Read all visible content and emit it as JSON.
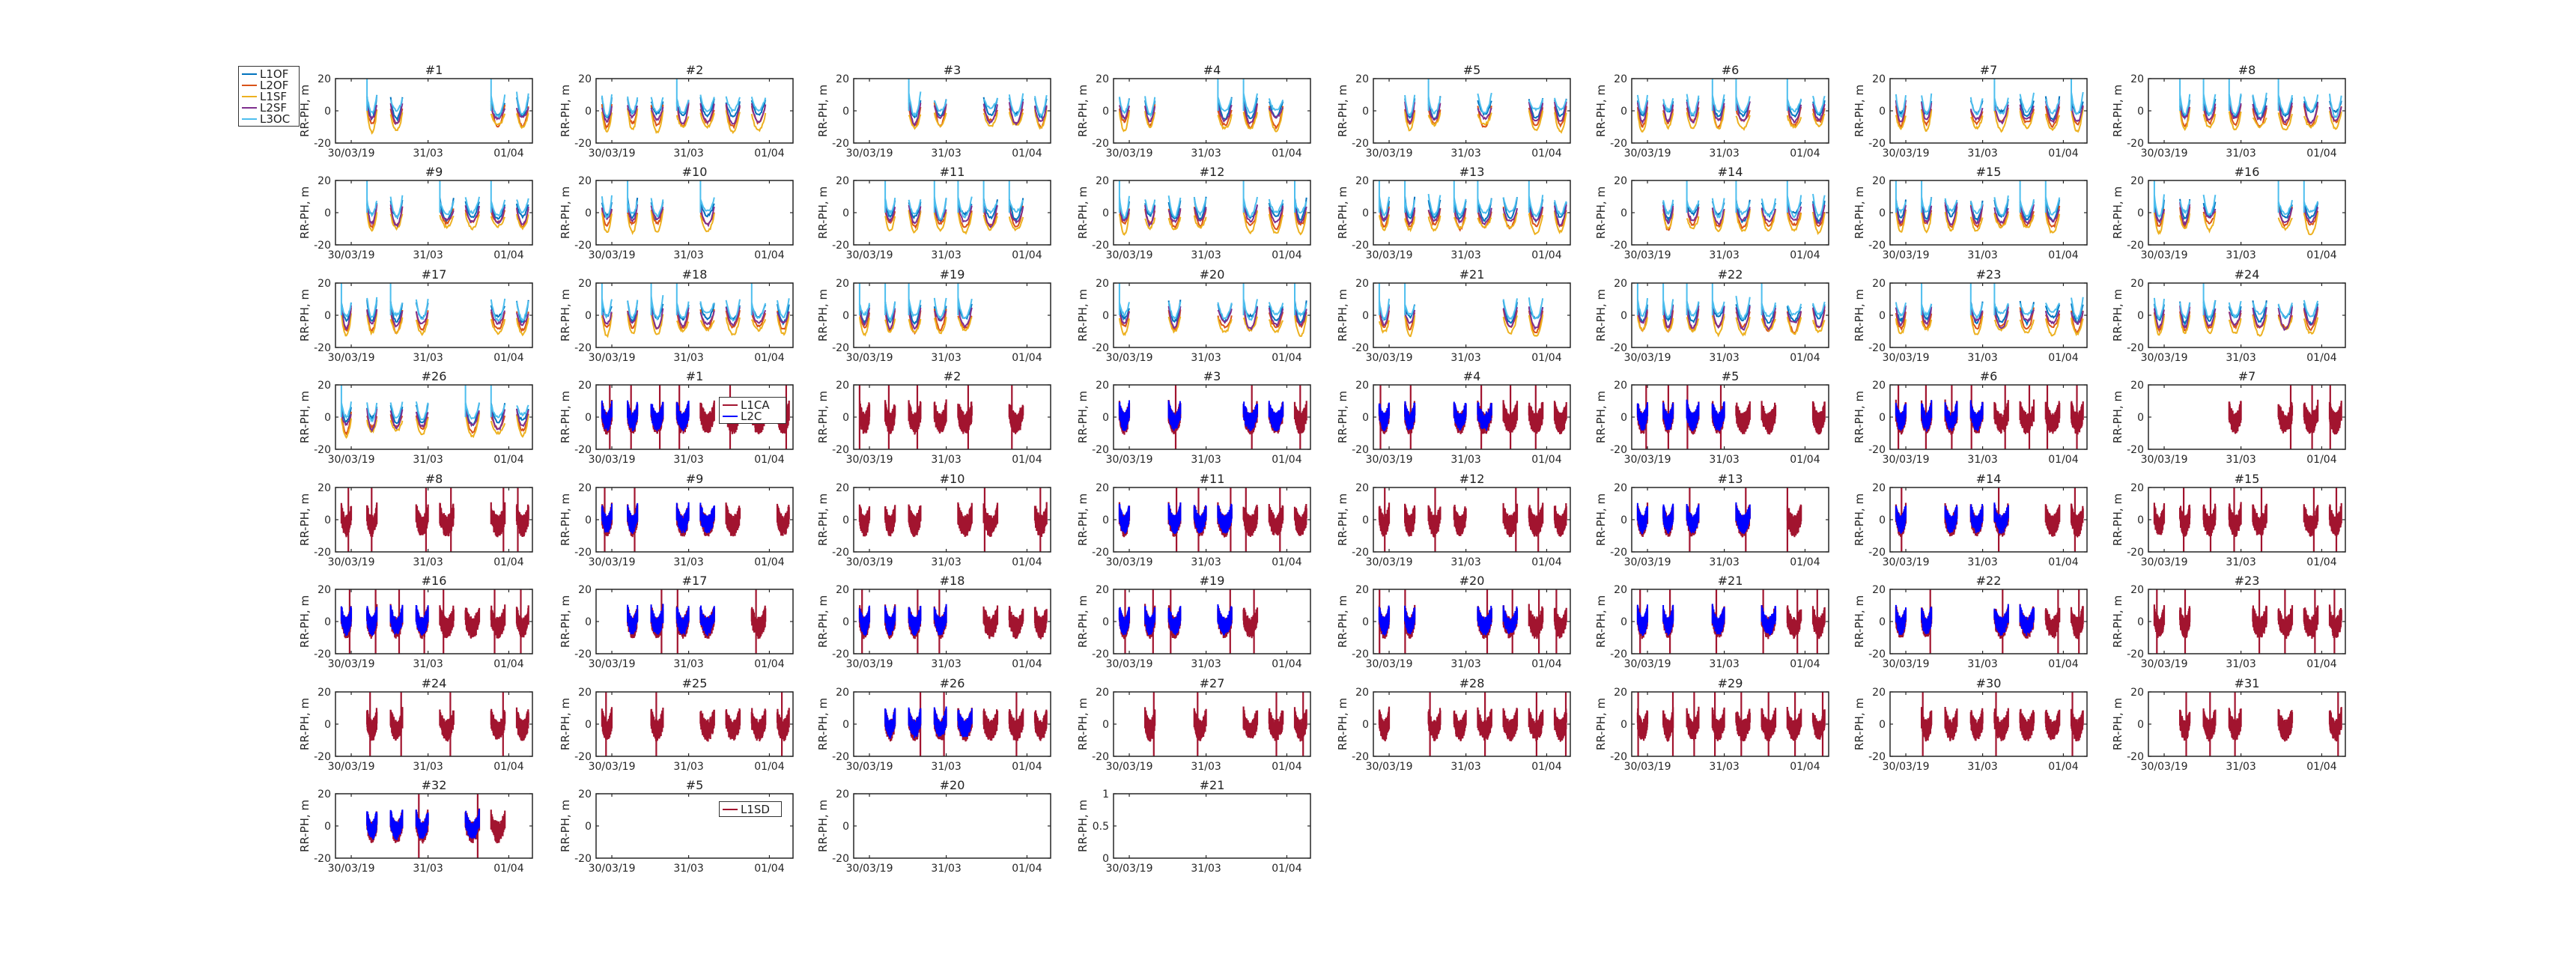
{
  "ylabel": "RR-PH, m",
  "xticks": [
    "30/03/19",
    "31/03",
    "01/04"
  ],
  "colors": {
    "L1OF": "#0072BD",
    "L2OF": "#D95319",
    "L1SF": "#EDB120",
    "L2SF": "#7E2F8E",
    "L3OC": "#4DBEEE",
    "L1CA": "#A2142F",
    "L2C": "#0000FF",
    "L1SD": "#A2142F"
  },
  "legends": {
    "glonass": [
      "L1OF",
      "L2OF",
      "L1SF",
      "L2SF",
      "L3OC"
    ],
    "gps": [
      "L1CA",
      "L2C"
    ],
    "sbas": [
      "L1SD"
    ]
  },
  "chart_data": [
    {
      "type": "line",
      "title": "#1",
      "group": "glonass",
      "ylim": [
        -20,
        20
      ],
      "yticks": [
        -20,
        0,
        20
      ],
      "series": [
        "L1OF",
        "L2OF",
        "L1SF",
        "L2SF",
        "L3OC"
      ]
    },
    {
      "type": "line",
      "title": "#2",
      "group": "glonass",
      "ylim": [
        -20,
        20
      ],
      "yticks": [
        -20,
        0,
        20
      ],
      "series": [
        "L1OF",
        "L2OF",
        "L1SF",
        "L2SF",
        "L3OC"
      ]
    },
    {
      "type": "line",
      "title": "#3",
      "group": "glonass",
      "ylim": [
        -20,
        20
      ],
      "yticks": [
        -20,
        0,
        20
      ],
      "series": [
        "L1OF",
        "L2OF",
        "L1SF",
        "L2SF",
        "L3OC"
      ]
    },
    {
      "type": "line",
      "title": "#4",
      "group": "glonass",
      "ylim": [
        -20,
        20
      ],
      "yticks": [
        -20,
        0,
        20
      ],
      "series": [
        "L1OF",
        "L2OF",
        "L1SF",
        "L2SF",
        "L3OC"
      ]
    },
    {
      "type": "line",
      "title": "#5",
      "group": "glonass",
      "ylim": [
        -20,
        20
      ],
      "yticks": [
        -20,
        0,
        20
      ],
      "series": [
        "L1OF",
        "L2OF",
        "L1SF",
        "L2SF",
        "L3OC"
      ]
    },
    {
      "type": "line",
      "title": "#6",
      "group": "glonass",
      "ylim": [
        -20,
        20
      ],
      "yticks": [
        -20,
        0,
        20
      ],
      "series": [
        "L1OF",
        "L2OF",
        "L1SF",
        "L2SF",
        "L3OC"
      ]
    },
    {
      "type": "line",
      "title": "#7",
      "group": "glonass",
      "ylim": [
        -20,
        20
      ],
      "yticks": [
        -20,
        0,
        20
      ],
      "series": [
        "L1OF",
        "L2OF",
        "L1SF",
        "L2SF",
        "L3OC"
      ]
    },
    {
      "type": "line",
      "title": "#8",
      "group": "glonass",
      "ylim": [
        -20,
        20
      ],
      "yticks": [
        -20,
        0,
        20
      ],
      "series": [
        "L1OF",
        "L2OF",
        "L1SF",
        "L2SF",
        "L3OC"
      ]
    },
    {
      "type": "line",
      "title": "#9",
      "group": "glonass",
      "ylim": [
        -20,
        20
      ],
      "yticks": [
        -20,
        0,
        20
      ],
      "series": [
        "L1OF",
        "L2OF",
        "L1SF",
        "L2SF",
        "L3OC"
      ]
    },
    {
      "type": "line",
      "title": "#10",
      "group": "glonass",
      "ylim": [
        -20,
        20
      ],
      "yticks": [
        -20,
        0,
        20
      ],
      "series": [
        "L1OF",
        "L2OF",
        "L1SF",
        "L2SF",
        "L3OC"
      ]
    },
    {
      "type": "line",
      "title": "#11",
      "group": "glonass",
      "ylim": [
        -20,
        20
      ],
      "yticks": [
        -20,
        0,
        20
      ],
      "series": [
        "L1OF",
        "L2OF",
        "L1SF",
        "L2SF",
        "L3OC"
      ]
    },
    {
      "type": "line",
      "title": "#12",
      "group": "glonass",
      "ylim": [
        -20,
        20
      ],
      "yticks": [
        -20,
        0,
        20
      ],
      "series": [
        "L1OF",
        "L2OF",
        "L1SF",
        "L2SF",
        "L3OC"
      ]
    },
    {
      "type": "line",
      "title": "#13",
      "group": "glonass",
      "ylim": [
        -20,
        20
      ],
      "yticks": [
        -20,
        0,
        20
      ],
      "series": [
        "L1OF",
        "L2OF",
        "L1SF",
        "L2SF",
        "L3OC"
      ]
    },
    {
      "type": "line",
      "title": "#14",
      "group": "glonass",
      "ylim": [
        -20,
        20
      ],
      "yticks": [
        -20,
        0,
        20
      ],
      "series": [
        "L1OF",
        "L2OF",
        "L1SF",
        "L2SF",
        "L3OC"
      ]
    },
    {
      "type": "line",
      "title": "#15",
      "group": "glonass",
      "ylim": [
        -20,
        20
      ],
      "yticks": [
        -20,
        0,
        20
      ],
      "series": [
        "L1OF",
        "L2OF",
        "L1SF",
        "L2SF",
        "L3OC"
      ]
    },
    {
      "type": "line",
      "title": "#16",
      "group": "glonass",
      "ylim": [
        -20,
        20
      ],
      "yticks": [
        -20,
        0,
        20
      ],
      "series": [
        "L1OF",
        "L2OF",
        "L1SF",
        "L2SF",
        "L3OC"
      ]
    },
    {
      "type": "line",
      "title": "#17",
      "group": "glonass",
      "ylim": [
        -20,
        20
      ],
      "yticks": [
        -20,
        0,
        20
      ],
      "series": [
        "L1OF",
        "L2OF",
        "L1SF",
        "L2SF",
        "L3OC"
      ]
    },
    {
      "type": "line",
      "title": "#18",
      "group": "glonass",
      "ylim": [
        -20,
        20
      ],
      "yticks": [
        -20,
        0,
        20
      ],
      "series": [
        "L1OF",
        "L2OF",
        "L1SF",
        "L2SF",
        "L3OC"
      ]
    },
    {
      "type": "line",
      "title": "#19",
      "group": "glonass",
      "ylim": [
        -20,
        20
      ],
      "yticks": [
        -20,
        0,
        20
      ],
      "series": [
        "L1OF",
        "L2OF",
        "L1SF",
        "L2SF",
        "L3OC"
      ]
    },
    {
      "type": "line",
      "title": "#20",
      "group": "glonass",
      "ylim": [
        -20,
        20
      ],
      "yticks": [
        -20,
        0,
        20
      ],
      "series": [
        "L1OF",
        "L2OF",
        "L1SF",
        "L2SF",
        "L3OC"
      ]
    },
    {
      "type": "line",
      "title": "#21",
      "group": "glonass",
      "ylim": [
        -20,
        20
      ],
      "yticks": [
        -20,
        0,
        20
      ],
      "series": [
        "L1OF",
        "L2OF",
        "L1SF",
        "L2SF",
        "L3OC"
      ]
    },
    {
      "type": "line",
      "title": "#22",
      "group": "glonass",
      "ylim": [
        -20,
        20
      ],
      "yticks": [
        -20,
        0,
        20
      ],
      "series": [
        "L1OF",
        "L2OF",
        "L1SF",
        "L2SF",
        "L3OC"
      ]
    },
    {
      "type": "line",
      "title": "#23",
      "group": "glonass",
      "ylim": [
        -20,
        20
      ],
      "yticks": [
        -20,
        0,
        20
      ],
      "series": [
        "L1OF",
        "L2OF",
        "L1SF",
        "L2SF",
        "L3OC"
      ]
    },
    {
      "type": "line",
      "title": "#24",
      "group": "glonass",
      "ylim": [
        -20,
        20
      ],
      "yticks": [
        -20,
        0,
        20
      ],
      "series": [
        "L1OF",
        "L2OF",
        "L1SF",
        "L2SF",
        "L3OC"
      ]
    },
    {
      "type": "line",
      "title": "#26",
      "group": "glonass",
      "ylim": [
        -20,
        20
      ],
      "yticks": [
        -20,
        0,
        20
      ],
      "series": [
        "L1OF",
        "L2OF",
        "L1SF",
        "L2SF",
        "L3OC"
      ]
    },
    {
      "type": "line",
      "title": "#1",
      "group": "gps",
      "ylim": [
        -20,
        20
      ],
      "yticks": [
        -20,
        0,
        20
      ],
      "series": [
        "L1CA",
        "L2C"
      ]
    },
    {
      "type": "line",
      "title": "#2",
      "group": "gps",
      "ylim": [
        -20,
        20
      ],
      "yticks": [
        -20,
        0,
        20
      ],
      "series": [
        "L1CA",
        "L2C"
      ]
    },
    {
      "type": "line",
      "title": "#3",
      "group": "gps",
      "ylim": [
        -20,
        20
      ],
      "yticks": [
        -20,
        0,
        20
      ],
      "series": [
        "L1CA",
        "L2C"
      ]
    },
    {
      "type": "line",
      "title": "#4",
      "group": "gps",
      "ylim": [
        -20,
        20
      ],
      "yticks": [
        -20,
        0,
        20
      ],
      "series": [
        "L1CA",
        "L2C"
      ]
    },
    {
      "type": "line",
      "title": "#5",
      "group": "gps",
      "ylim": [
        -20,
        20
      ],
      "yticks": [
        -20,
        0,
        20
      ],
      "series": [
        "L1CA",
        "L2C"
      ]
    },
    {
      "type": "line",
      "title": "#6",
      "group": "gps",
      "ylim": [
        -20,
        20
      ],
      "yticks": [
        -20,
        0,
        20
      ],
      "series": [
        "L1CA",
        "L2C"
      ]
    },
    {
      "type": "line",
      "title": "#7",
      "group": "gps",
      "ylim": [
        -20,
        20
      ],
      "yticks": [
        -20,
        0,
        20
      ],
      "series": [
        "L1CA",
        "L2C"
      ]
    },
    {
      "type": "line",
      "title": "#8",
      "group": "gps",
      "ylim": [
        -20,
        20
      ],
      "yticks": [
        -20,
        0,
        20
      ],
      "series": [
        "L1CA",
        "L2C"
      ]
    },
    {
      "type": "line",
      "title": "#9",
      "group": "gps",
      "ylim": [
        -20,
        20
      ],
      "yticks": [
        -20,
        0,
        20
      ],
      "series": [
        "L1CA",
        "L2C"
      ]
    },
    {
      "type": "line",
      "title": "#10",
      "group": "gps",
      "ylim": [
        -20,
        20
      ],
      "yticks": [
        -20,
        0,
        20
      ],
      "series": [
        "L1CA",
        "L2C"
      ]
    },
    {
      "type": "line",
      "title": "#11",
      "group": "gps",
      "ylim": [
        -20,
        20
      ],
      "yticks": [
        -20,
        0,
        20
      ],
      "series": [
        "L1CA",
        "L2C"
      ]
    },
    {
      "type": "line",
      "title": "#12",
      "group": "gps",
      "ylim": [
        -20,
        20
      ],
      "yticks": [
        -20,
        0,
        20
      ],
      "series": [
        "L1CA",
        "L2C"
      ]
    },
    {
      "type": "line",
      "title": "#13",
      "group": "gps",
      "ylim": [
        -20,
        20
      ],
      "yticks": [
        -20,
        0,
        20
      ],
      "series": [
        "L1CA",
        "L2C"
      ]
    },
    {
      "type": "line",
      "title": "#14",
      "group": "gps",
      "ylim": [
        -20,
        20
      ],
      "yticks": [
        -20,
        0,
        20
      ],
      "series": [
        "L1CA",
        "L2C"
      ]
    },
    {
      "type": "line",
      "title": "#15",
      "group": "gps",
      "ylim": [
        -20,
        20
      ],
      "yticks": [
        -20,
        0,
        20
      ],
      "series": [
        "L1CA",
        "L2C"
      ]
    },
    {
      "type": "line",
      "title": "#16",
      "group": "gps",
      "ylim": [
        -20,
        20
      ],
      "yticks": [
        -20,
        0,
        20
      ],
      "series": [
        "L1CA",
        "L2C"
      ]
    },
    {
      "type": "line",
      "title": "#17",
      "group": "gps",
      "ylim": [
        -20,
        20
      ],
      "yticks": [
        -20,
        0,
        20
      ],
      "series": [
        "L1CA",
        "L2C"
      ]
    },
    {
      "type": "line",
      "title": "#18",
      "group": "gps",
      "ylim": [
        -20,
        20
      ],
      "yticks": [
        -20,
        0,
        20
      ],
      "series": [
        "L1CA",
        "L2C"
      ]
    },
    {
      "type": "line",
      "title": "#19",
      "group": "gps",
      "ylim": [
        -20,
        20
      ],
      "yticks": [
        -20,
        0,
        20
      ],
      "series": [
        "L1CA",
        "L2C"
      ]
    },
    {
      "type": "line",
      "title": "#20",
      "group": "gps",
      "ylim": [
        -20,
        20
      ],
      "yticks": [
        -20,
        0,
        20
      ],
      "series": [
        "L1CA",
        "L2C"
      ]
    },
    {
      "type": "line",
      "title": "#21",
      "group": "gps",
      "ylim": [
        -20,
        20
      ],
      "yticks": [
        -20,
        0,
        20
      ],
      "series": [
        "L1CA",
        "L2C"
      ]
    },
    {
      "type": "line",
      "title": "#22",
      "group": "gps",
      "ylim": [
        -20,
        20
      ],
      "yticks": [
        -20,
        0,
        20
      ],
      "series": [
        "L1CA",
        "L2C"
      ]
    },
    {
      "type": "line",
      "title": "#23",
      "group": "gps",
      "ylim": [
        -20,
        20
      ],
      "yticks": [
        -20,
        0,
        20
      ],
      "series": [
        "L1CA",
        "L2C"
      ]
    },
    {
      "type": "line",
      "title": "#24",
      "group": "gps",
      "ylim": [
        -20,
        20
      ],
      "yticks": [
        -20,
        0,
        20
      ],
      "series": [
        "L1CA",
        "L2C"
      ]
    },
    {
      "type": "line",
      "title": "#25",
      "group": "gps",
      "ylim": [
        -20,
        20
      ],
      "yticks": [
        -20,
        0,
        20
      ],
      "series": [
        "L1CA",
        "L2C"
      ]
    },
    {
      "type": "line",
      "title": "#26",
      "group": "gps",
      "ylim": [
        -20,
        20
      ],
      "yticks": [
        -20,
        0,
        20
      ],
      "series": [
        "L1CA",
        "L2C"
      ]
    },
    {
      "type": "line",
      "title": "#27",
      "group": "gps",
      "ylim": [
        -20,
        20
      ],
      "yticks": [
        -20,
        0,
        20
      ],
      "series": [
        "L1CA",
        "L2C"
      ]
    },
    {
      "type": "line",
      "title": "#28",
      "group": "gps",
      "ylim": [
        -20,
        20
      ],
      "yticks": [
        -20,
        0,
        20
      ],
      "series": [
        "L1CA",
        "L2C"
      ]
    },
    {
      "type": "line",
      "title": "#29",
      "group": "gps",
      "ylim": [
        -20,
        20
      ],
      "yticks": [
        -20,
        0,
        20
      ],
      "series": [
        "L1CA",
        "L2C"
      ]
    },
    {
      "type": "line",
      "title": "#30",
      "group": "gps",
      "ylim": [
        -20,
        20
      ],
      "yticks": [
        -20,
        0,
        20
      ],
      "series": [
        "L1CA",
        "L2C"
      ]
    },
    {
      "type": "line",
      "title": "#31",
      "group": "gps",
      "ylim": [
        -20,
        20
      ],
      "yticks": [
        -20,
        0,
        20
      ],
      "series": [
        "L1CA",
        "L2C"
      ]
    },
    {
      "type": "line",
      "title": "#32",
      "group": "gps",
      "ylim": [
        -20,
        20
      ],
      "yticks": [
        -20,
        0,
        20
      ],
      "series": [
        "L1CA",
        "L2C"
      ]
    },
    {
      "type": "line",
      "title": "#5",
      "group": "sbas",
      "ylim": [
        -20,
        20
      ],
      "yticks": [
        -20,
        0,
        20
      ],
      "series": [
        "L1SD"
      ],
      "empty": true
    },
    {
      "type": "line",
      "title": "#20",
      "group": "sbas",
      "ylim": [
        -20,
        20
      ],
      "yticks": [
        -20,
        0,
        20
      ],
      "series": [
        "L1SD"
      ],
      "empty": true
    },
    {
      "type": "line",
      "title": "#21",
      "group": "sbas",
      "ylim": [
        0,
        1
      ],
      "yticks": [
        0,
        0.5,
        1
      ],
      "series": [
        "L1SD"
      ],
      "empty": true
    }
  ]
}
